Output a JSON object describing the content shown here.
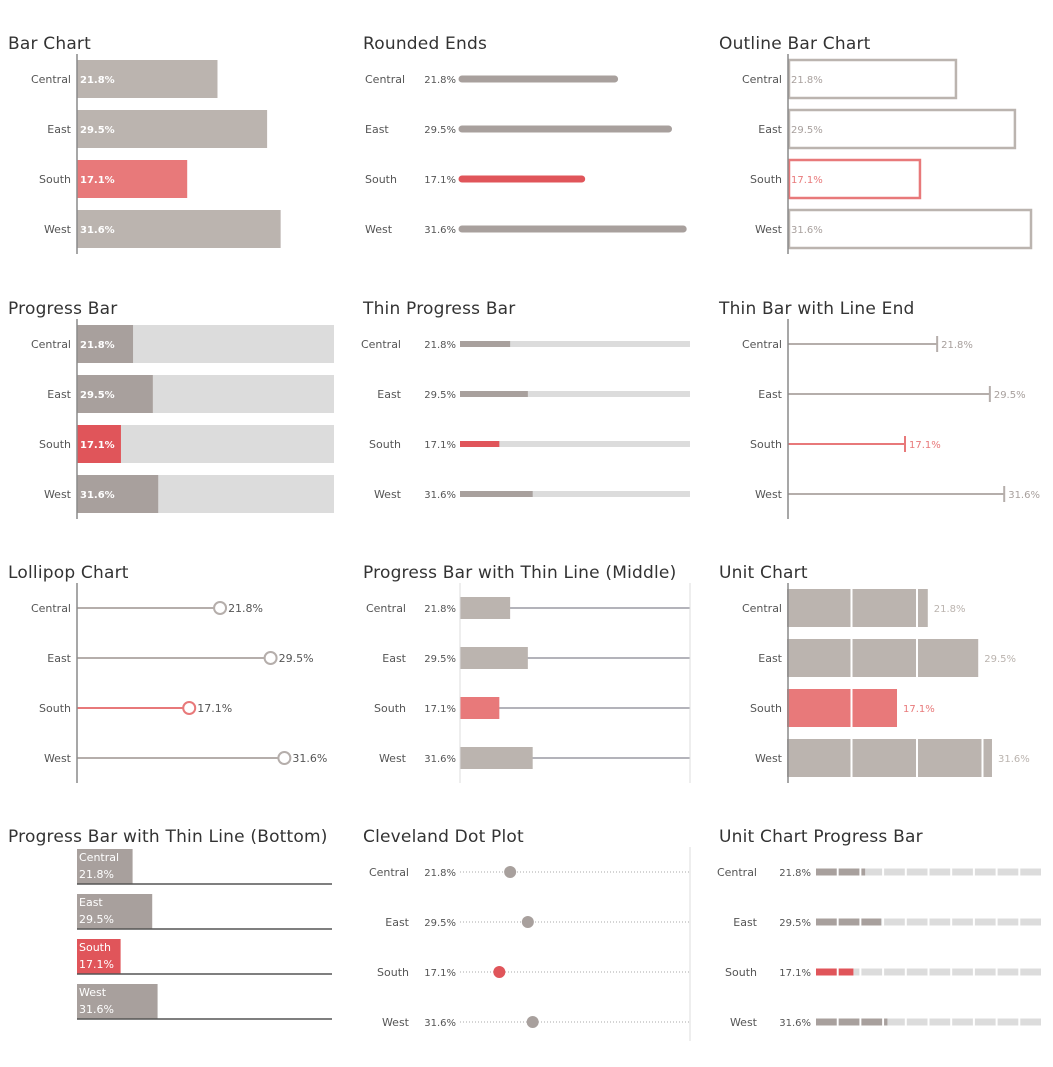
{
  "colors": {
    "neutral": "#bbb4af",
    "neutral_dark": "#a8a09d",
    "highlight": "#e8797a",
    "highlight_strong": "#e0555a",
    "track": "#dcdcdc",
    "axis": "#8a8a8a",
    "label": "#555555",
    "line": "#b5aeab"
  },
  "chart_data": [
    {
      "id": "bar",
      "type": "bar",
      "title": "Bar Chart",
      "categories": [
        "Central",
        "East",
        "South",
        "West"
      ],
      "values": [
        21.8,
        29.5,
        17.1,
        31.6
      ],
      "value_labels": [
        "21.8%",
        "29.5%",
        "17.1%",
        "31.6%"
      ],
      "highlight": "South",
      "xlim": [
        0,
        45
      ]
    },
    {
      "id": "rounded",
      "type": "bar",
      "title": "Rounded Ends",
      "categories": [
        "Central",
        "East",
        "South",
        "West"
      ],
      "values": [
        21.8,
        29.5,
        17.1,
        31.6
      ],
      "value_labels": [
        "21.8%",
        "29.5%",
        "17.1%",
        "31.6%"
      ],
      "highlight": "South",
      "xlim": [
        0,
        50
      ]
    },
    {
      "id": "outline",
      "type": "bar",
      "title": "Outline Bar Chart",
      "categories": [
        "Central",
        "East",
        "South",
        "West"
      ],
      "values": [
        21.8,
        29.5,
        17.1,
        31.6
      ],
      "value_labels": [
        "21.8%",
        "29.5%",
        "17.1%",
        "31.6%"
      ],
      "highlight": "South",
      "xlim": [
        0,
        31.6
      ]
    },
    {
      "id": "progress",
      "type": "bar",
      "title": "Progress Bar",
      "categories": [
        "Central",
        "East",
        "South",
        "West"
      ],
      "values": [
        21.8,
        29.5,
        17.1,
        31.6
      ],
      "value_labels": [
        "21.8%",
        "29.5%",
        "17.1%",
        "31.6%"
      ],
      "highlight": "South",
      "xlim": [
        0,
        100
      ]
    },
    {
      "id": "thin_progress",
      "type": "bar",
      "title": "Thin Progress Bar",
      "categories": [
        "Central",
        "East",
        "South",
        "West"
      ],
      "values": [
        21.8,
        29.5,
        17.1,
        31.6
      ],
      "value_labels": [
        "21.8%",
        "29.5%",
        "17.1%",
        "31.6%"
      ],
      "highlight": "South",
      "xlim": [
        0,
        100
      ]
    },
    {
      "id": "line_end",
      "type": "bar",
      "title": "Thin Bar with Line End",
      "categories": [
        "Central",
        "East",
        "South",
        "West"
      ],
      "values": [
        21.8,
        29.5,
        17.1,
        31.6
      ],
      "value_labels": [
        "21.8%",
        "29.5%",
        "17.1%",
        "31.6%"
      ],
      "highlight": "South",
      "xlim": [
        0,
        38
      ]
    },
    {
      "id": "lollipop",
      "type": "scatter",
      "title": "Lollipop Chart",
      "categories": [
        "Central",
        "East",
        "South",
        "West"
      ],
      "values": [
        21.8,
        29.5,
        17.1,
        31.6
      ],
      "value_labels": [
        "21.8%",
        "29.5%",
        "17.1%",
        "31.6%"
      ],
      "highlight": "South",
      "xlim": [
        0,
        32
      ]
    },
    {
      "id": "thin_line_middle",
      "type": "bar",
      "title": "Progress Bar with Thin Line (Middle)",
      "categories": [
        "Central",
        "East",
        "South",
        "West"
      ],
      "values": [
        21.8,
        29.5,
        17.1,
        31.6
      ],
      "value_labels": [
        "21.8%",
        "29.5%",
        "17.1%",
        "31.6%"
      ],
      "highlight": "South",
      "xlim": [
        0,
        100
      ]
    },
    {
      "id": "unit",
      "type": "bar",
      "title": "Unit Chart",
      "categories": [
        "Central",
        "East",
        "South",
        "West"
      ],
      "values": [
        21.8,
        29.5,
        17.1,
        31.6
      ],
      "value_labels": [
        "21.8%",
        "29.5%",
        "17.1%",
        "31.6%"
      ],
      "highlight": "South",
      "unit_size": 10,
      "xlim": [
        0,
        35
      ]
    },
    {
      "id": "thin_line_bottom",
      "type": "bar",
      "title": "Progress Bar with Thin Line (Bottom)",
      "categories": [
        "Central",
        "East",
        "South",
        "West"
      ],
      "values": [
        21.8,
        29.5,
        17.1,
        31.6
      ],
      "value_labels": [
        "21.8%",
        "29.5%",
        "17.1%",
        "31.6%"
      ],
      "highlight": "South",
      "xlim": [
        0,
        100
      ]
    },
    {
      "id": "cleveland",
      "type": "scatter",
      "title": "Cleveland Dot Plot",
      "categories": [
        "Central",
        "East",
        "South",
        "West"
      ],
      "values": [
        21.8,
        29.5,
        17.1,
        31.6
      ],
      "value_labels": [
        "21.8%",
        "29.5%",
        "17.1%",
        "31.6%"
      ],
      "highlight": "South",
      "xlim": [
        0,
        100
      ]
    },
    {
      "id": "unit_progress",
      "type": "bar",
      "title": "Unit Chart Progress Bar",
      "categories": [
        "Central",
        "East",
        "South",
        "West"
      ],
      "values": [
        21.8,
        29.5,
        17.1,
        31.6
      ],
      "value_labels": [
        "21.8%",
        "29.5%",
        "17.1%",
        "31.6%"
      ],
      "highlight": "South",
      "unit_size": 10,
      "xlim": [
        0,
        100
      ]
    }
  ]
}
